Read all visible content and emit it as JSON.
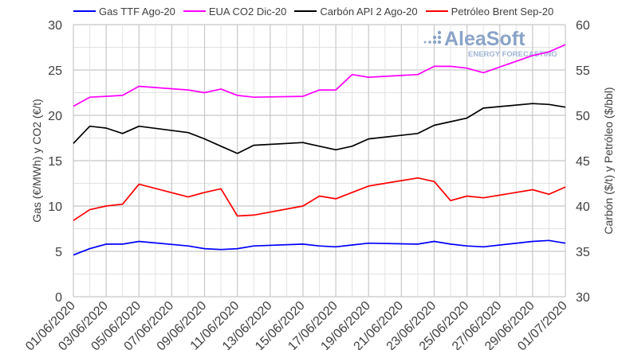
{
  "chart_data": {
    "type": "line",
    "title": "",
    "xlabel": "",
    "ylabel": "Gas (€/MWh) y CO2 (€/t)",
    "y2label": "Carbón ($/t) y Petróleo ($/bbl)",
    "ylim": [
      0,
      30
    ],
    "y2lim": [
      30,
      60
    ],
    "yticks": [
      0,
      5,
      10,
      15,
      20,
      25,
      30
    ],
    "y2ticks": [
      30,
      35,
      40,
      45,
      50,
      55,
      60
    ],
    "grid": true,
    "legend_position": "top",
    "x_tick_labels": [
      "01/06/2020",
      "03/06/2020",
      "05/06/2020",
      "07/06/2020",
      "09/06/2020",
      "11/06/2020",
      "13/06/2020",
      "15/06/2020",
      "17/06/2020",
      "19/06/2020",
      "21/06/2020",
      "23/06/2020",
      "25/06/2020",
      "27/06/2020",
      "29/06/2020",
      "01/07/2020"
    ],
    "x": [
      "01/06/2020",
      "02/06/2020",
      "03/06/2020",
      "04/06/2020",
      "05/06/2020",
      "08/06/2020",
      "09/06/2020",
      "10/06/2020",
      "11/06/2020",
      "12/06/2020",
      "15/06/2020",
      "16/06/2020",
      "17/06/2020",
      "18/06/2020",
      "19/06/2020",
      "22/06/2020",
      "23/06/2020",
      "24/06/2020",
      "25/06/2020",
      "26/06/2020",
      "29/06/2020",
      "30/06/2020",
      "01/07/2020"
    ],
    "x_day_index": [
      0,
      1,
      2,
      3,
      4,
      7,
      8,
      9,
      10,
      11,
      14,
      15,
      16,
      17,
      18,
      21,
      22,
      23,
      24,
      25,
      28,
      29,
      30
    ],
    "series": [
      {
        "name": "Gas TTF Ago-20",
        "axis": "left",
        "color": "#0000ff",
        "values": [
          4.6,
          5.3,
          5.8,
          5.8,
          6.1,
          5.6,
          5.3,
          5.2,
          5.3,
          5.6,
          5.8,
          5.6,
          5.5,
          5.7,
          5.9,
          5.8,
          6.1,
          5.8,
          5.6,
          5.5,
          6.1,
          6.2,
          5.9
        ]
      },
      {
        "name": "EUA CO2 Dic-20",
        "axis": "left",
        "color": "#ff00ff",
        "values": [
          21.0,
          22.0,
          22.1,
          22.2,
          23.2,
          22.8,
          22.5,
          22.9,
          22.2,
          22.0,
          22.1,
          22.8,
          22.8,
          24.5,
          24.2,
          24.5,
          25.4,
          25.4,
          25.2,
          24.7,
          26.6,
          27.0,
          27.8
        ]
      },
      {
        "name": "Carbón API 2 Ago-20",
        "axis": "right",
        "color": "#000000",
        "values": [
          46.9,
          48.8,
          48.6,
          48.0,
          48.8,
          48.1,
          47.4,
          46.6,
          45.8,
          46.7,
          47.0,
          46.6,
          46.2,
          46.6,
          47.4,
          48.0,
          48.9,
          49.3,
          49.7,
          50.8,
          51.3,
          51.2,
          50.9
        ]
      },
      {
        "name": "Petróleo Brent Sep-20",
        "axis": "right",
        "color": "#ff0000",
        "values": [
          38.4,
          39.6,
          40.0,
          40.2,
          42.4,
          41.0,
          41.5,
          41.9,
          38.9,
          39.0,
          40.0,
          41.1,
          40.8,
          41.5,
          42.2,
          43.1,
          42.7,
          40.6,
          41.1,
          40.9,
          41.8,
          41.3,
          42.1
        ]
      }
    ]
  },
  "watermark": {
    "brand": "AleaSoft",
    "tagline": "ENERGY FORECASTING",
    "color": "#8aa3c8"
  },
  "style": {
    "grid_major": "#c8c8c8",
    "grid_minor": "#e2e2e2",
    "axis_text": "#404040"
  }
}
